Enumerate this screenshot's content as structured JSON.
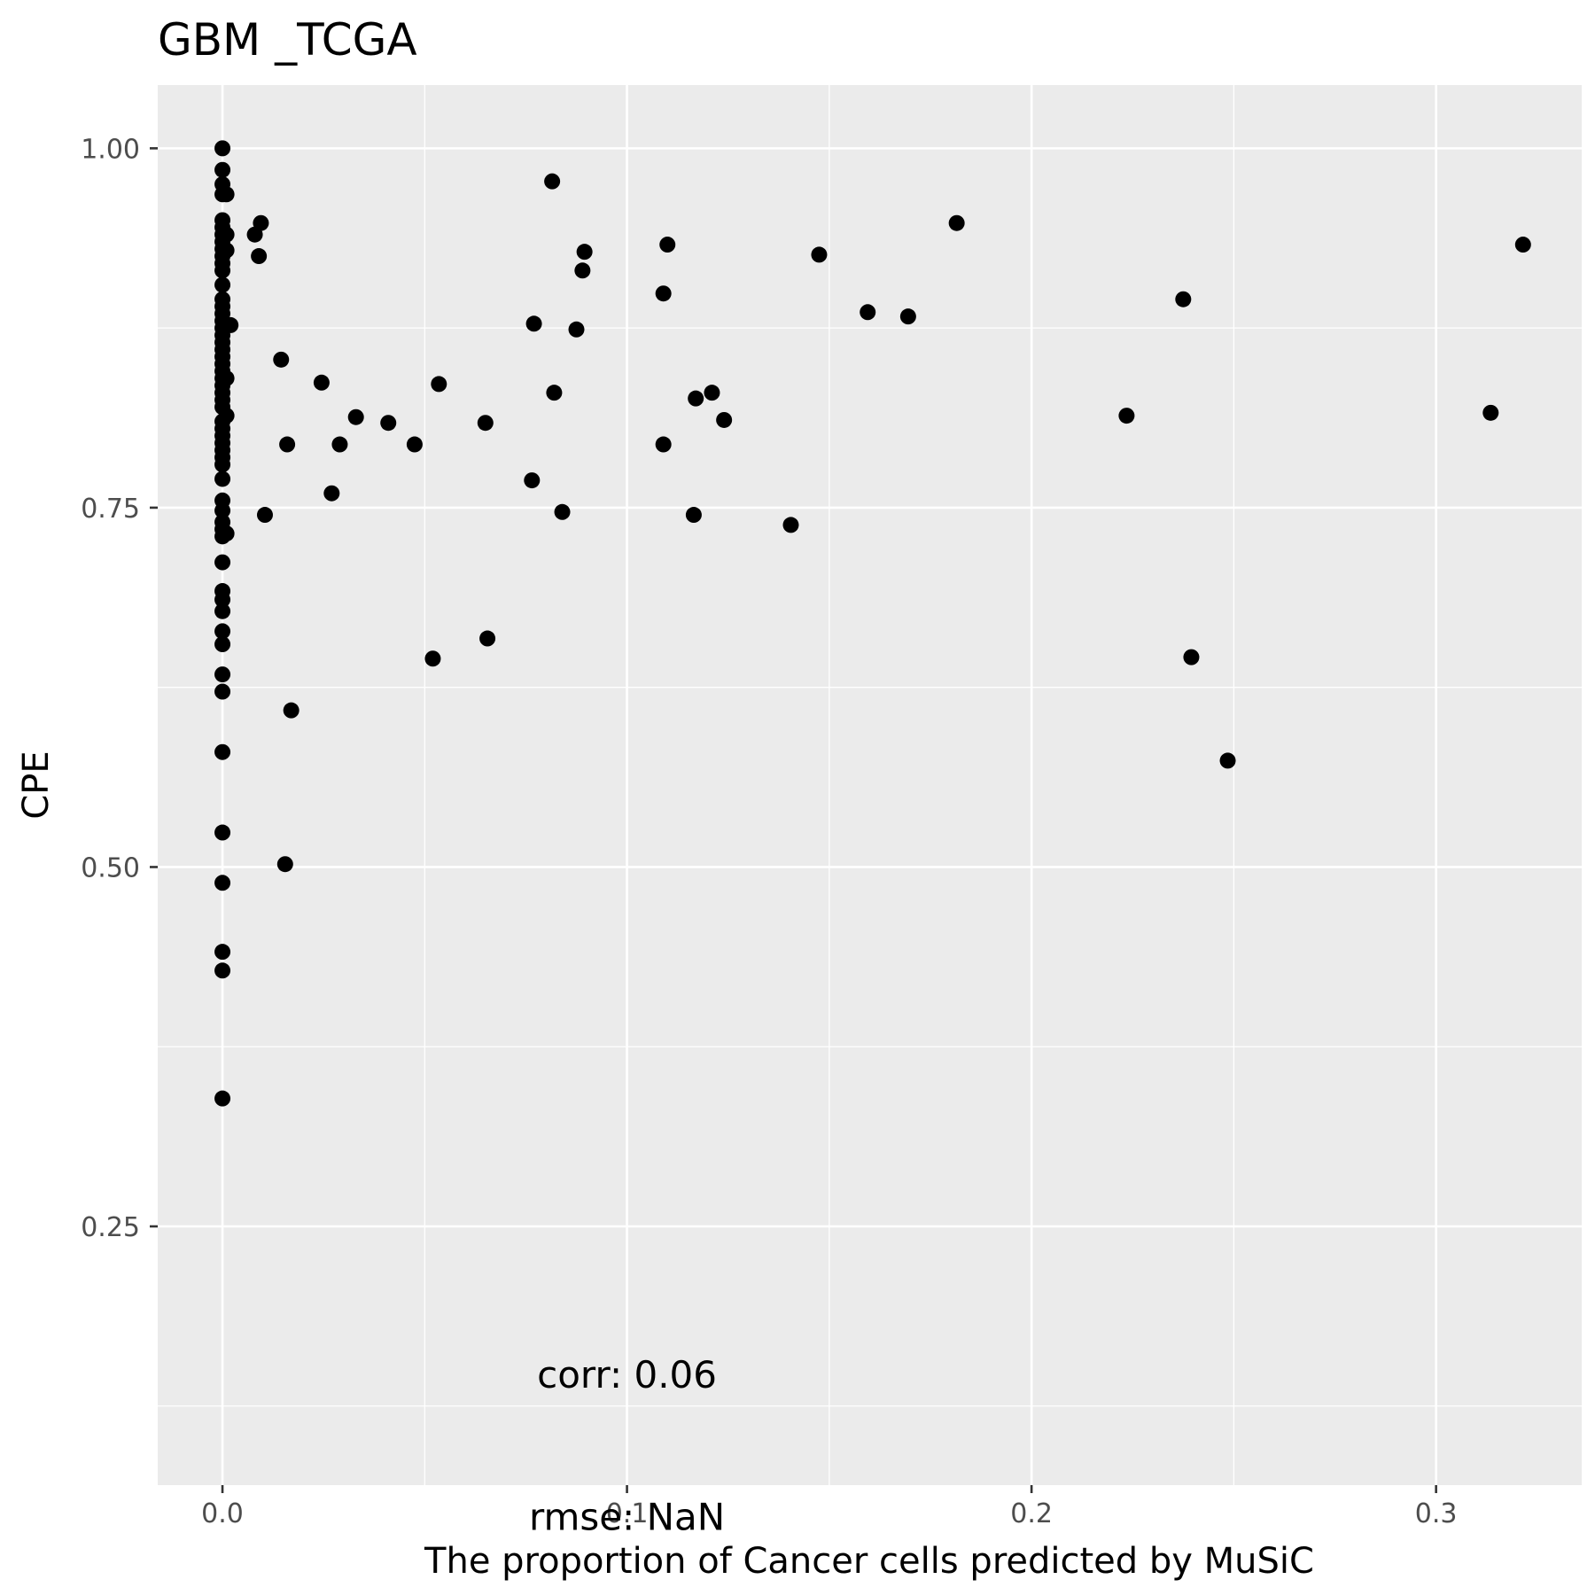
{
  "chart_data": {
    "type": "scatter",
    "title": "GBM _TCGA",
    "xlabel": "The proportion of Cancer cells predicted by MuSiC",
    "ylabel": "CPE",
    "xlim": [
      -0.016,
      0.336
    ],
    "ylim": [
      0.07,
      1.044
    ],
    "xticks": [
      0.0,
      0.1,
      0.2,
      0.3
    ],
    "xtick_labels": [
      "0.0",
      "0.1",
      "0.2",
      "0.3"
    ],
    "yticks": [
      0.25,
      0.5,
      0.75,
      1.0
    ],
    "ytick_labels": [
      "0.25",
      "0.50",
      "0.75",
      "1.00"
    ],
    "grid": true,
    "annotations": [
      {
        "text": "corr: 0.06",
        "x": 0.1,
        "y": 0.147
      },
      {
        "text": "rmse: NaN",
        "x": 0.1,
        "y": 0.048
      }
    ],
    "points": [
      [
        0.0,
        1.0
      ],
      [
        0.0,
        0.985
      ],
      [
        0.0,
        0.975
      ],
      [
        0.0,
        0.968
      ],
      [
        0.0,
        0.95
      ],
      [
        0.0,
        0.945
      ],
      [
        0.0,
        0.94
      ],
      [
        0.0,
        0.935
      ],
      [
        0.0,
        0.93
      ],
      [
        0.0,
        0.925
      ],
      [
        0.0,
        0.92
      ],
      [
        0.0,
        0.915
      ],
      [
        0.0,
        0.905
      ],
      [
        0.0,
        0.895
      ],
      [
        0.0,
        0.89
      ],
      [
        0.0,
        0.885
      ],
      [
        0.0,
        0.88
      ],
      [
        0.0,
        0.875
      ],
      [
        0.0,
        0.87
      ],
      [
        0.0,
        0.865
      ],
      [
        0.0,
        0.86
      ],
      [
        0.0,
        0.855
      ],
      [
        0.0,
        0.85
      ],
      [
        0.0,
        0.845
      ],
      [
        0.0,
        0.84
      ],
      [
        0.0,
        0.835
      ],
      [
        0.0,
        0.83
      ],
      [
        0.0,
        0.825
      ],
      [
        0.0,
        0.82
      ],
      [
        0.0,
        0.81
      ],
      [
        0.0,
        0.805
      ],
      [
        0.0,
        0.8
      ],
      [
        0.0,
        0.795
      ],
      [
        0.0,
        0.79
      ],
      [
        0.0,
        0.785
      ],
      [
        0.0,
        0.78
      ],
      [
        0.0,
        0.77
      ],
      [
        0.0,
        0.755
      ],
      [
        0.0,
        0.748
      ],
      [
        0.0,
        0.74
      ],
      [
        0.0,
        0.735
      ],
      [
        0.0,
        0.73
      ],
      [
        0.0,
        0.712
      ],
      [
        0.0,
        0.692
      ],
      [
        0.0,
        0.686
      ],
      [
        0.0,
        0.678
      ],
      [
        0.0,
        0.664
      ],
      [
        0.0,
        0.655
      ],
      [
        0.0,
        0.634
      ],
      [
        0.0,
        0.622
      ],
      [
        0.0,
        0.58
      ],
      [
        0.0,
        0.524
      ],
      [
        0.0,
        0.489
      ],
      [
        0.0,
        0.441
      ],
      [
        0.0,
        0.428
      ],
      [
        0.0,
        0.339
      ],
      [
        0.001,
        0.968
      ],
      [
        0.001,
        0.929
      ],
      [
        0.001,
        0.94
      ],
      [
        0.001,
        0.84
      ],
      [
        0.001,
        0.814
      ],
      [
        0.001,
        0.732
      ],
      [
        0.002,
        0.877
      ],
      [
        0.008,
        0.94
      ],
      [
        0.009,
        0.925
      ],
      [
        0.0095,
        0.948
      ],
      [
        0.0105,
        0.745
      ],
      [
        0.0145,
        0.853
      ],
      [
        0.0155,
        0.502
      ],
      [
        0.016,
        0.794
      ],
      [
        0.017,
        0.609
      ],
      [
        0.0245,
        0.837
      ],
      [
        0.027,
        0.76
      ],
      [
        0.029,
        0.794
      ],
      [
        0.033,
        0.813
      ],
      [
        0.041,
        0.809
      ],
      [
        0.0475,
        0.794
      ],
      [
        0.052,
        0.645
      ],
      [
        0.0535,
        0.836
      ],
      [
        0.065,
        0.809
      ],
      [
        0.0655,
        0.659
      ],
      [
        0.0765,
        0.769
      ],
      [
        0.077,
        0.878
      ],
      [
        0.0815,
        0.977
      ],
      [
        0.082,
        0.83
      ],
      [
        0.084,
        0.747
      ],
      [
        0.0875,
        0.874
      ],
      [
        0.089,
        0.915
      ],
      [
        0.0895,
        0.928
      ],
      [
        0.109,
        0.899
      ],
      [
        0.109,
        0.794
      ],
      [
        0.11,
        0.933
      ],
      [
        0.1165,
        0.745
      ],
      [
        0.117,
        0.826
      ],
      [
        0.121,
        0.83
      ],
      [
        0.124,
        0.811
      ],
      [
        0.1405,
        0.738
      ],
      [
        0.1475,
        0.926
      ],
      [
        0.1595,
        0.886
      ],
      [
        0.1695,
        0.883
      ],
      [
        0.1815,
        0.948
      ],
      [
        0.2235,
        0.814
      ],
      [
        0.2375,
        0.895
      ],
      [
        0.2395,
        0.646
      ],
      [
        0.2485,
        0.574
      ],
      [
        0.3135,
        0.816
      ],
      [
        0.3215,
        0.933
      ]
    ]
  }
}
